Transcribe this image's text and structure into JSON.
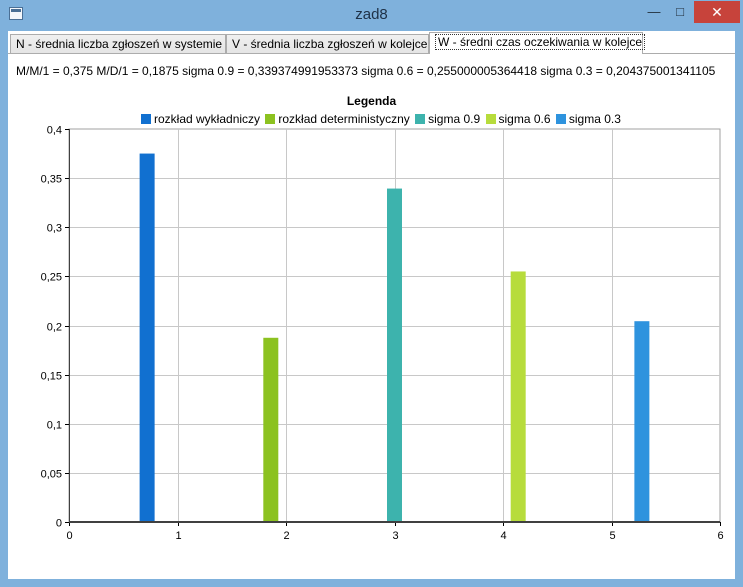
{
  "window": {
    "title": "zad8",
    "min_glyph": "—",
    "max_glyph": "□",
    "close_glyph": "✕"
  },
  "tabs": [
    {
      "label": "N - średnia liczba zgłoszeń w systemie",
      "active": false
    },
    {
      "label": "V - średnia liczba zgłoszeń w kolejce",
      "active": false
    },
    {
      "label": "W - średni czas oczekiwania w kolejce",
      "active": true
    }
  ],
  "stats_line": "M/M/1 = 0,375 M/D/1 = 0,1875 sigma 0.9 = 0,339374991953373 sigma 0.6 = 0,255000005364418 sigma 0.3 = 0,204375001341105",
  "legend": {
    "title": "Legenda",
    "items": [
      {
        "label": "rozkład wykładniczy",
        "color": "#1170d0"
      },
      {
        "label": "rozkład deterministyczny",
        "color": "#8cc220"
      },
      {
        "label": "sigma 0.9",
        "color": "#3db3ad"
      },
      {
        "label": "sigma 0.6",
        "color": "#b7dc3c"
      },
      {
        "label": "sigma 0.3",
        "color": "#2e93de"
      }
    ]
  },
  "chart_data": {
    "type": "bar",
    "xlim": [
      0,
      6
    ],
    "ylim": [
      0,
      0.4
    ],
    "x_ticks": [
      "0",
      "1",
      "2",
      "3",
      "4",
      "5",
      "6"
    ],
    "y_ticks": [
      "0",
      "0,05",
      "0,1",
      "0,15",
      "0,2",
      "0,25",
      "0,3",
      "0,35",
      "0,4"
    ],
    "grid": true,
    "series": [
      {
        "name": "rozkład wykładniczy",
        "x": 0.72,
        "value": 0.375,
        "color": "#1170d0"
      },
      {
        "name": "rozkład deterministyczny",
        "x": 1.86,
        "value": 0.1875,
        "color": "#8cc220"
      },
      {
        "name": "sigma 0.9",
        "x": 3.0,
        "value": 0.339374991953373,
        "color": "#3db3ad"
      },
      {
        "name": "sigma 0.6",
        "x": 4.14,
        "value": 0.255000005364418,
        "color": "#b7dc3c"
      },
      {
        "name": "sigma 0.3",
        "x": 5.28,
        "value": 0.204375001341105,
        "color": "#2e93de"
      }
    ]
  }
}
